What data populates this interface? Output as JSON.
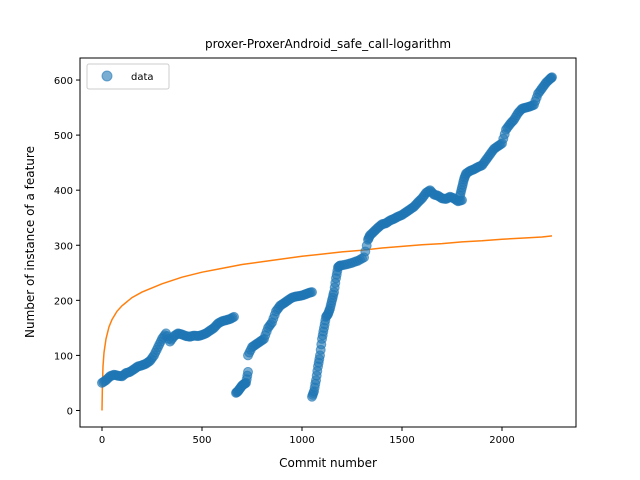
{
  "chart_data": {
    "type": "scatter",
    "title": "proxer-ProxerAndroid_safe_call-logarithm",
    "xlabel": "Commit number",
    "ylabel": "Number of instance of a feature",
    "xlim": [
      -110,
      2370
    ],
    "ylim": [
      -30,
      640
    ],
    "xticks": [
      0,
      500,
      1000,
      1500,
      2000
    ],
    "yticks": [
      0,
      100,
      200,
      300,
      400,
      500,
      600
    ],
    "grid": false,
    "legend": {
      "location": "upper left",
      "entries": [
        "data"
      ]
    },
    "series": [
      {
        "name": "data",
        "kind": "markers",
        "color": "#1f77b4",
        "segments": [
          {
            "x": [
              0,
              20,
              40,
              60,
              80,
              100,
              120,
              140,
              160,
              180,
              200,
              220,
              240,
              260,
              280,
              300,
              320,
              340,
              360,
              380,
              400,
              420,
              440,
              460,
              480,
              500,
              520,
              540,
              560,
              580,
              600,
              620,
              640,
              660
            ],
            "y": [
              50,
              55,
              62,
              65,
              63,
              62,
              68,
              70,
              75,
              80,
              82,
              85,
              90,
              100,
              115,
              130,
              140,
              125,
              135,
              140,
              138,
              135,
              134,
              136,
              135,
              137,
              140,
              145,
              150,
              158,
              162,
              164,
              166,
              170
            ]
          },
          {
            "x": [
              670,
              680,
              690,
              700,
              710,
              720,
              730
            ],
            "y": [
              32,
              35,
              40,
              45,
              48,
              50,
              70
            ]
          },
          {
            "x": [
              730,
              750,
              770,
              790,
              810,
              830,
              850,
              870,
              890,
              910,
              930,
              950,
              970,
              990,
              1010,
              1030,
              1050
            ],
            "y": [
              100,
              115,
              120,
              125,
              130,
              150,
              160,
              180,
              190,
              195,
              200,
              205,
              207,
              208,
              210,
              213,
              215
            ]
          },
          {
            "x": [
              1050,
              1060,
              1070,
              1080,
              1090,
              1100,
              1110,
              1120,
              1130,
              1140,
              1150,
              1160,
              1170,
              1180,
              1190
            ],
            "y": [
              25,
              35,
              55,
              80,
              100,
              130,
              150,
              170,
              175,
              185,
              200,
              215,
              240,
              260,
              263
            ]
          },
          {
            "x": [
              1190,
              1220,
              1250,
              1280,
              1310,
              1330,
              1340,
              1360,
              1380,
              1400,
              1420,
              1440,
              1460,
              1480,
              1500,
              1520,
              1540,
              1560,
              1580,
              1600,
              1620,
              1640,
              1660,
              1680,
              1700,
              1720,
              1740,
              1760,
              1780,
              1800
            ],
            "y": [
              263,
              265,
              268,
              272,
              278,
              310,
              318,
              325,
              332,
              338,
              340,
              345,
              348,
              352,
              355,
              360,
              365,
              370,
              378,
              385,
              395,
              400,
              392,
              390,
              385,
              384,
              388,
              385,
              380,
              382
            ]
          },
          {
            "x": [
              1790,
              1800,
              1810,
              1820,
              1840,
              1860,
              1880,
              1900,
              1920,
              1940,
              1960,
              1980,
              2000,
              2020,
              2040,
              2060,
              2080,
              2100,
              2120,
              2140,
              2160,
              2180,
              2200,
              2220,
              2240,
              2250
            ],
            "y": [
              390,
              405,
              420,
              430,
              435,
              438,
              442,
              445,
              455,
              465,
              475,
              480,
              485,
              510,
              520,
              528,
              540,
              548,
              550,
              552,
              555,
              575,
              585,
              595,
              602,
              605
            ]
          }
        ]
      },
      {
        "name": "",
        "kind": "line",
        "color": "#ff7f0e",
        "x": [
          0,
          2,
          5,
          10,
          20,
          35,
          50,
          75,
          100,
          150,
          200,
          300,
          400,
          500,
          600,
          700,
          800,
          900,
          1000,
          1100,
          1200,
          1300,
          1400,
          1500,
          1600,
          1700,
          1800,
          1900,
          2000,
          2100,
          2200,
          2250
        ],
        "y": [
          0,
          45,
          80,
          105,
          130,
          152,
          165,
          180,
          190,
          205,
          215,
          230,
          242,
          251,
          258,
          265,
          270,
          275,
          280,
          284,
          288,
          291,
          295,
          298,
          301,
          303,
          306,
          308,
          311,
          313,
          315,
          317
        ]
      }
    ]
  }
}
